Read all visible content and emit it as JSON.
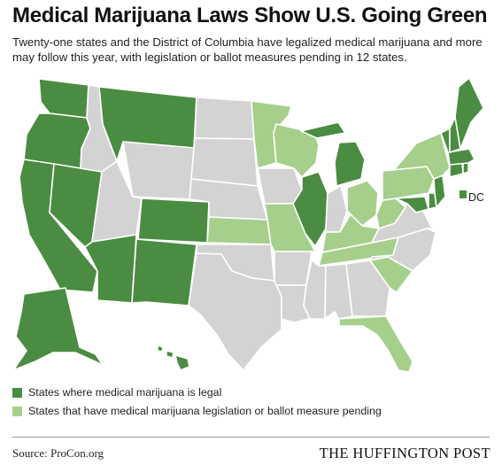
{
  "header": {
    "title": "Medical Marijuana Laws Show U.S. Going Green",
    "subtitle": "Twenty-one states and the District of Columbia have legalized medical marijuana and more may follow this year, with legislation or ballot measures pending in 12 states."
  },
  "colors": {
    "legal": "#4a8c41",
    "pending": "#a5cf8b",
    "other": "#d3d3d3",
    "border": "#ffffff"
  },
  "states": {
    "WA": "legal",
    "OR": "legal",
    "CA": "legal",
    "NV": "legal",
    "AZ": "legal",
    "MT": "legal",
    "CO": "legal",
    "NM": "legal",
    "AK": "legal",
    "HI": "legal",
    "IL": "legal",
    "MI": "legal",
    "ME": "legal",
    "VT": "legal",
    "NH": "legal",
    "MA": "legal",
    "RI": "legal",
    "CT": "legal",
    "NJ": "legal",
    "DE": "legal",
    "DC": "legal",
    "MN": "pending",
    "WI": "pending",
    "KS": "pending",
    "MO": "pending",
    "NY": "pending",
    "PA": "pending",
    "OH": "pending",
    "WV": "pending",
    "KY": "pending",
    "TN": "pending",
    "SC": "pending",
    "FL": "pending",
    "ID": "other",
    "WY": "other",
    "UT": "other",
    "ND": "other",
    "SD": "other",
    "NE": "other",
    "OK": "other",
    "TX": "other",
    "IA": "other",
    "AR": "other",
    "LA": "other",
    "MS": "other",
    "AL": "other",
    "GA": "other",
    "NC": "other",
    "VA": "other",
    "IN": "other",
    "MD": "legal"
  },
  "dc_label": "DC",
  "legend": {
    "legal": "States where medical marijuana is legal",
    "pending": "States that have medical marijuana legislation or ballot measure pending"
  },
  "footer": {
    "source": "Source: ProCon.org",
    "brand": "THE HUFFINGTON POST"
  }
}
